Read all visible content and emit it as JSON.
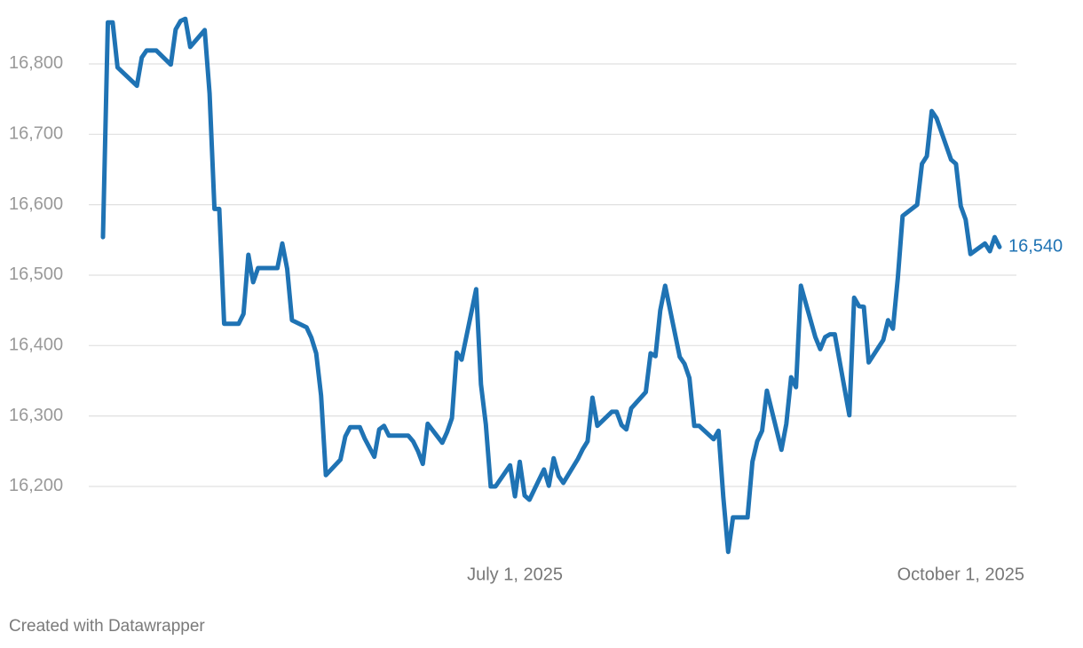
{
  "chart_data": {
    "type": "line",
    "x": [
      "2025-04-07",
      "2025-04-08",
      "2025-04-09",
      "2025-04-10",
      "2025-04-14",
      "2025-04-15",
      "2025-04-16",
      "2025-04-18",
      "2025-04-21",
      "2025-04-22",
      "2025-04-23",
      "2025-04-24",
      "2025-04-25",
      "2025-04-28",
      "2025-04-29",
      "2025-04-30",
      "2025-05-01",
      "2025-05-02",
      "2025-05-05",
      "2025-05-06",
      "2025-05-07",
      "2025-05-08",
      "2025-05-09",
      "2025-05-13",
      "2025-05-14",
      "2025-05-15",
      "2025-05-16",
      "2025-05-19",
      "2025-05-20",
      "2025-05-21",
      "2025-05-22",
      "2025-05-23",
      "2025-05-26",
      "2025-05-27",
      "2025-05-28",
      "2025-05-30",
      "2025-05-31",
      "2025-06-02",
      "2025-06-03",
      "2025-06-04",
      "2025-06-05",
      "2025-06-09",
      "2025-06-10",
      "2025-06-11",
      "2025-06-12",
      "2025-06-13",
      "2025-06-16",
      "2025-06-17",
      "2025-06-18",
      "2025-06-19",
      "2025-06-20",
      "2025-06-23",
      "2025-06-24",
      "2025-06-25",
      "2025-06-26",
      "2025-06-27",
      "2025-06-30",
      "2025-07-01",
      "2025-07-02",
      "2025-07-03",
      "2025-07-04",
      "2025-07-07",
      "2025-07-08",
      "2025-07-09",
      "2025-07-10",
      "2025-07-11",
      "2025-07-14",
      "2025-07-15",
      "2025-07-16",
      "2025-07-17",
      "2025-07-18",
      "2025-07-21",
      "2025-07-22",
      "2025-07-23",
      "2025-07-24",
      "2025-07-25",
      "2025-07-28",
      "2025-07-29",
      "2025-07-30",
      "2025-07-31",
      "2025-08-01",
      "2025-08-04",
      "2025-08-05",
      "2025-08-06",
      "2025-08-07",
      "2025-08-08",
      "2025-08-11",
      "2025-08-12",
      "2025-08-13",
      "2025-08-14",
      "2025-08-15",
      "2025-08-18",
      "2025-08-19",
      "2025-08-20",
      "2025-08-21",
      "2025-08-22",
      "2025-08-25",
      "2025-08-26",
      "2025-08-27",
      "2025-08-28",
      "2025-08-29",
      "2025-09-01",
      "2025-09-02",
      "2025-09-03",
      "2025-09-04",
      "2025-09-05",
      "2025-09-08",
      "2025-09-09",
      "2025-09-10",
      "2025-09-11",
      "2025-09-12",
      "2025-09-15",
      "2025-09-16",
      "2025-09-17",
      "2025-09-18",
      "2025-09-19",
      "2025-09-22",
      "2025-09-23",
      "2025-09-24",
      "2025-09-25",
      "2025-09-26",
      "2025-09-29",
      "2025-09-30",
      "2025-10-01",
      "2025-10-02",
      "2025-10-03",
      "2025-10-06",
      "2025-10-07",
      "2025-10-08",
      "2025-10-09"
    ],
    "series": [
      {
        "color": "#1f73b4",
        "values": [
          16554,
          16859,
          16859,
          16795,
          16769,
          16809,
          16819,
          16819,
          16799,
          16849,
          16861,
          16864,
          16824,
          16848,
          16758,
          16594,
          16594,
          16431,
          16431,
          16445,
          16529,
          16490,
          16510,
          16510,
          16545,
          16509,
          16436,
          16426,
          16411,
          16389,
          16329,
          16216,
          16238,
          16271,
          16284,
          16284,
          16268,
          16242,
          16281,
          16286,
          16272,
          16272,
          16264,
          16250,
          16232,
          16289,
          16262,
          16277,
          16297,
          16390,
          16380,
          16480,
          16345,
          16288,
          16200,
          16200,
          16230,
          16186,
          16235,
          16187,
          16181,
          16224,
          16201,
          16240,
          16215,
          16205,
          16239,
          16253,
          16264,
          16326,
          16286,
          16306,
          16306,
          16287,
          16281,
          16311,
          16334,
          16389,
          16385,
          16450,
          16485,
          16384,
          16374,
          16354,
          16286,
          16286,
          16267,
          16279,
          16185,
          16107,
          16156,
          16156,
          16235,
          16264,
          16279,
          16336,
          16252,
          16289,
          16355,
          16341,
          16485,
          16412,
          16395,
          16412,
          16416,
          16416,
          16301,
          16468,
          16456,
          16455,
          16376,
          16408,
          16436,
          16424,
          16496,
          16584,
          16600,
          16658,
          16669,
          16733,
          16723,
          16664,
          16658,
          16598,
          16579,
          16530,
          16545,
          16534,
          16554,
          16540
        ],
        "value_labels": [
          null,
          null,
          null,
          null,
          null,
          null,
          null,
          null,
          null,
          null,
          null,
          null,
          null,
          null,
          null,
          null,
          null,
          null,
          null,
          null,
          null,
          null,
          null,
          null,
          null,
          null,
          null,
          null,
          null,
          null,
          null,
          null,
          null,
          null,
          null,
          null,
          null,
          null,
          null,
          null,
          null,
          null,
          null,
          null,
          null,
          null,
          null,
          null,
          null,
          null,
          null,
          null,
          null,
          null,
          null,
          null,
          null,
          null,
          null,
          null,
          null,
          null,
          null,
          null,
          null,
          null,
          null,
          null,
          null,
          null,
          null,
          null,
          null,
          null,
          null,
          null,
          null,
          null,
          null,
          null,
          null,
          null,
          null,
          null,
          null,
          null,
          null,
          null,
          null,
          null,
          null,
          null,
          null,
          null,
          null,
          null,
          null,
          null,
          null,
          null,
          null,
          null,
          null,
          null,
          null,
          null,
          null,
          null,
          null,
          null,
          null,
          null,
          null,
          null,
          null,
          null,
          null,
          null,
          null,
          null,
          null,
          null,
          null,
          null,
          null,
          null,
          null,
          null,
          null,
          "16,540"
        ]
      }
    ],
    "xlim": [
      "2025-04-07",
      "2025-10-09"
    ],
    "xticks": [
      {
        "value": "2025-07-01",
        "label": "July 1, 2025"
      },
      {
        "value": "2025-10-01",
        "label": "October 1, 2025"
      }
    ],
    "ylim": [
      16100,
      16880
    ],
    "yticks": [
      {
        "value": 16200,
        "label": "16,200"
      },
      {
        "value": 16300,
        "label": "16,300"
      },
      {
        "value": 16400,
        "label": "16,400"
      },
      {
        "value": 16500,
        "label": "16,500"
      },
      {
        "value": 16600,
        "label": "16,600"
      },
      {
        "value": 16700,
        "label": "16,700"
      },
      {
        "value": 16800,
        "label": "16,800"
      }
    ],
    "grid": true,
    "footer": "Created with Datawrapper"
  }
}
